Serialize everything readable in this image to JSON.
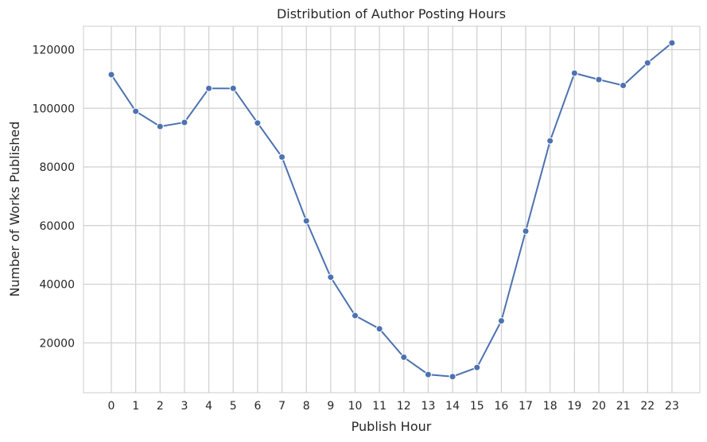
{
  "chart_data": {
    "type": "line",
    "title": "Distribution of Author Posting Hours",
    "xlabel": "Publish Hour",
    "ylabel": "Number of Works Published",
    "x": [
      "0",
      "1",
      "2",
      "3",
      "4",
      "5",
      "6",
      "7",
      "8",
      "9",
      "10",
      "11",
      "12",
      "13",
      "14",
      "15",
      "16",
      "17",
      "18",
      "19",
      "20",
      "21",
      "22",
      "23"
    ],
    "values": [
      111500,
      99000,
      93800,
      95200,
      106800,
      106800,
      95000,
      83400,
      61600,
      42400,
      29300,
      24800,
      15100,
      9200,
      8500,
      11600,
      27500,
      58100,
      88900,
      112000,
      109800,
      107800,
      115500,
      122300
    ],
    "ylim": [
      3000,
      128000
    ],
    "yticks": [
      20000,
      40000,
      60000,
      80000,
      100000,
      120000
    ],
    "ytick_labels": [
      "20000",
      "40000",
      "60000",
      "80000",
      "100000",
      "120000"
    ],
    "grid": true,
    "line_color": "#4c72b0",
    "grid_color": "#cfcfcf",
    "axes_edge_color": "#cccccc"
  }
}
